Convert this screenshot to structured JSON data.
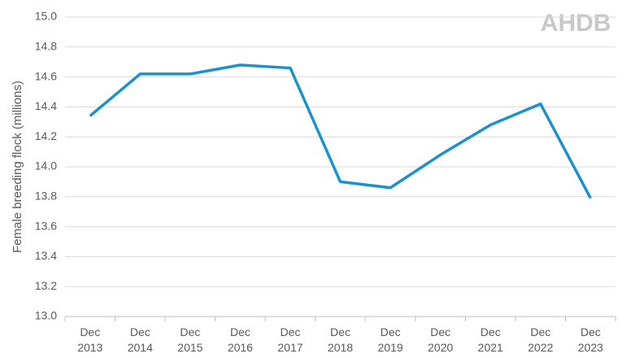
{
  "chart_data": {
    "type": "line",
    "y_label": "Female breeding flock (millions)",
    "logo": "AHDB",
    "categories": [
      "Dec 2013",
      "Dec 2014",
      "Dec 2015",
      "Dec 2016",
      "Dec 2017",
      "Dec 2018",
      "Dec 2019",
      "Dec 2020",
      "Dec 2021",
      "Dec 2022",
      "Dec 2023"
    ],
    "values": [
      14.34,
      14.62,
      14.62,
      14.68,
      14.66,
      13.9,
      13.86,
      14.08,
      14.28,
      14.42,
      13.79
    ],
    "color": "#1a91d1",
    "ylim": [
      13.0,
      15.0
    ],
    "yticks": [
      {
        "value": 13,
        "label": "13.0"
      },
      13.2,
      13.4,
      13.6,
      13.8,
      {
        "value": 14,
        "label": "14.0"
      },
      14.2,
      14.4,
      14.6,
      14.8,
      {
        "value": 15,
        "label": "15.0"
      }
    ],
    "grid": true
  }
}
